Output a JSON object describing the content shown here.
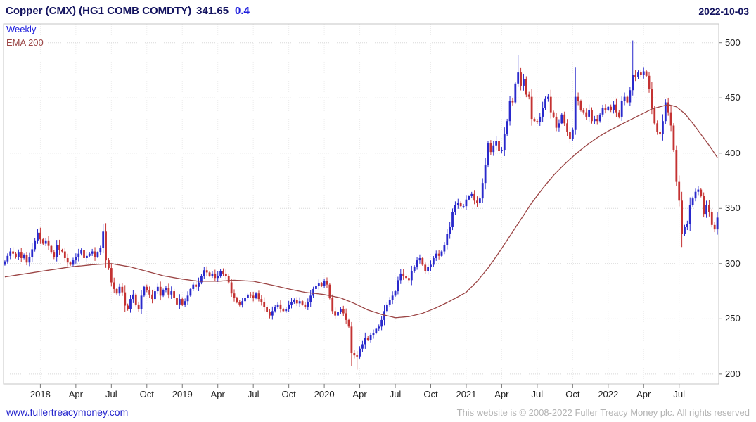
{
  "header": {
    "title": "Copper (CMX) (HG1 COMB COMDTY)",
    "price": "341.65",
    "change": "0.4",
    "date": "2022-10-03"
  },
  "legend": {
    "timeframe": "Weekly",
    "overlay": "EMA 200"
  },
  "footer": {
    "site": "www.fullertreacymoney.com",
    "copyright": "This website is © 2008-2022 Fuller Treacy Money plc. All rights reserved"
  },
  "colors": {
    "up": "#2929cc",
    "down": "#c43232",
    "ema": "#9b4444",
    "grid": "#d8d8d8",
    "vgrid": "#ececec",
    "border": "#c4c4c4",
    "tick": "#777777",
    "title": "#13135f",
    "chg": "#2020dd",
    "link": "#2121cc"
  },
  "chart_data": {
    "type": "candlestick",
    "title": "Copper (CMX) (HG1 COMB COMDTY)",
    "timeframe": "Weekly",
    "overlay": "EMA 200",
    "last_price": 341.65,
    "change": 0.4,
    "ylim": [
      191,
      517
    ],
    "yticks": [
      200,
      250,
      300,
      350,
      400,
      450,
      500
    ],
    "grid": "dotted",
    "legend_position": "top-left-inside",
    "x_start": "2017-10",
    "x_end": "2022-10",
    "xticks": [
      {
        "label": "2018",
        "week": 13
      },
      {
        "label": "Apr",
        "week": 26
      },
      {
        "label": "Jul",
        "week": 39
      },
      {
        "label": "Oct",
        "week": 52
      },
      {
        "label": "2019",
        "week": 65
      },
      {
        "label": "Apr",
        "week": 78
      },
      {
        "label": "Jul",
        "week": 91
      },
      {
        "label": "Oct",
        "week": 104
      },
      {
        "label": "2020",
        "week": 117
      },
      {
        "label": "Apr",
        "week": 130
      },
      {
        "label": "Jul",
        "week": 143
      },
      {
        "label": "Oct",
        "week": 156
      },
      {
        "label": "2021",
        "week": 169
      },
      {
        "label": "Apr",
        "week": 182
      },
      {
        "label": "Jul",
        "week": 195
      },
      {
        "label": "Oct",
        "week": 208
      },
      {
        "label": "2022",
        "week": 221
      },
      {
        "label": "Apr",
        "week": 234
      },
      {
        "label": "Jul",
        "week": 247
      }
    ],
    "weekly_closes": [
      302,
      307,
      311,
      309,
      306,
      310,
      305,
      308,
      301,
      306,
      313,
      321,
      328,
      322,
      318,
      321,
      316,
      310,
      306,
      317,
      312,
      311,
      305,
      301,
      299,
      303,
      306,
      309,
      312,
      305,
      307,
      309,
      311,
      306,
      310,
      314,
      329,
      303,
      296,
      283,
      277,
      273,
      279,
      274,
      262,
      259,
      268,
      272,
      263,
      259,
      271,
      279,
      276,
      272,
      268,
      275,
      279,
      271,
      276,
      278,
      272,
      275,
      269,
      263,
      268,
      263,
      266,
      271,
      277,
      281,
      279,
      283,
      289,
      294,
      292,
      289,
      291,
      287,
      289,
      293,
      291,
      289,
      283,
      273,
      269,
      265,
      263,
      266,
      269,
      272,
      271,
      269,
      273,
      268,
      265,
      261,
      256,
      253,
      257,
      261,
      263,
      259,
      257,
      259,
      263,
      265,
      267,
      264,
      266,
      263,
      261,
      265,
      271,
      277,
      280,
      282,
      280,
      284,
      281,
      269,
      257,
      253,
      256,
      259,
      255,
      249,
      243,
      219,
      217,
      216,
      223,
      227,
      233,
      231,
      235,
      237,
      241,
      243,
      249,
      257,
      263,
      267,
      271,
      275,
      285,
      291,
      289,
      287,
      285,
      293,
      297,
      303,
      305,
      299,
      293,
      297,
      299,
      305,
      309,
      307,
      311,
      317,
      327,
      333,
      347,
      353,
      355,
      352,
      352,
      358,
      361,
      363,
      357,
      355,
      359,
      373,
      389,
      409,
      401,
      407,
      411,
      402,
      403,
      417,
      429,
      447,
      446,
      463,
      473,
      461,
      467,
      453,
      451,
      431,
      429,
      428,
      433,
      441,
      449,
      451,
      437,
      433,
      423,
      427,
      435,
      427,
      419,
      413,
      421,
      451,
      447,
      439,
      437,
      433,
      439,
      429,
      431,
      429,
      435,
      441,
      439,
      442,
      439,
      444,
      437,
      433,
      447,
      451,
      446,
      457,
      471,
      469,
      473,
      471,
      474,
      470,
      458,
      441,
      427,
      419,
      417,
      429,
      446,
      437,
      425,
      403,
      374,
      357,
      327,
      333,
      336,
      353,
      359,
      365,
      367,
      361,
      345,
      353,
      347,
      335,
      331,
      341.65
    ],
    "wick_overrides": {
      "36": {
        "high": 336
      },
      "127": {
        "low": 207
      },
      "129": {
        "low": 204
      },
      "188": {
        "high": 489
      },
      "209": {
        "high": 478
      },
      "230": {
        "high": 502
      },
      "248": {
        "low": 315
      }
    },
    "ema200": [
      [
        0,
        288
      ],
      [
        8,
        291
      ],
      [
        16,
        294
      ],
      [
        24,
        297
      ],
      [
        32,
        299
      ],
      [
        39,
        300
      ],
      [
        46,
        297
      ],
      [
        52,
        293
      ],
      [
        58,
        289
      ],
      [
        65,
        286
      ],
      [
        71,
        284
      ],
      [
        78,
        284
      ],
      [
        84,
        285
      ],
      [
        91,
        284
      ],
      [
        97,
        281
      ],
      [
        104,
        277
      ],
      [
        110,
        274
      ],
      [
        117,
        272
      ],
      [
        123,
        269
      ],
      [
        128,
        264
      ],
      [
        133,
        258
      ],
      [
        138,
        254
      ],
      [
        143,
        251
      ],
      [
        148,
        252
      ],
      [
        153,
        255
      ],
      [
        158,
        260
      ],
      [
        163,
        266
      ],
      [
        169,
        274
      ],
      [
        173,
        284
      ],
      [
        177,
        296
      ],
      [
        181,
        310
      ],
      [
        185,
        325
      ],
      [
        189,
        340
      ],
      [
        193,
        355
      ],
      [
        197,
        368
      ],
      [
        201,
        380
      ],
      [
        205,
        390
      ],
      [
        209,
        399
      ],
      [
        213,
        407
      ],
      [
        217,
        414
      ],
      [
        221,
        420
      ],
      [
        225,
        425
      ],
      [
        229,
        430
      ],
      [
        233,
        435
      ],
      [
        237,
        440
      ],
      [
        240,
        442
      ],
      [
        243,
        444
      ],
      [
        246,
        442
      ],
      [
        249,
        436
      ],
      [
        252,
        427
      ],
      [
        255,
        417
      ],
      [
        258,
        407
      ],
      [
        261,
        396
      ]
    ]
  }
}
